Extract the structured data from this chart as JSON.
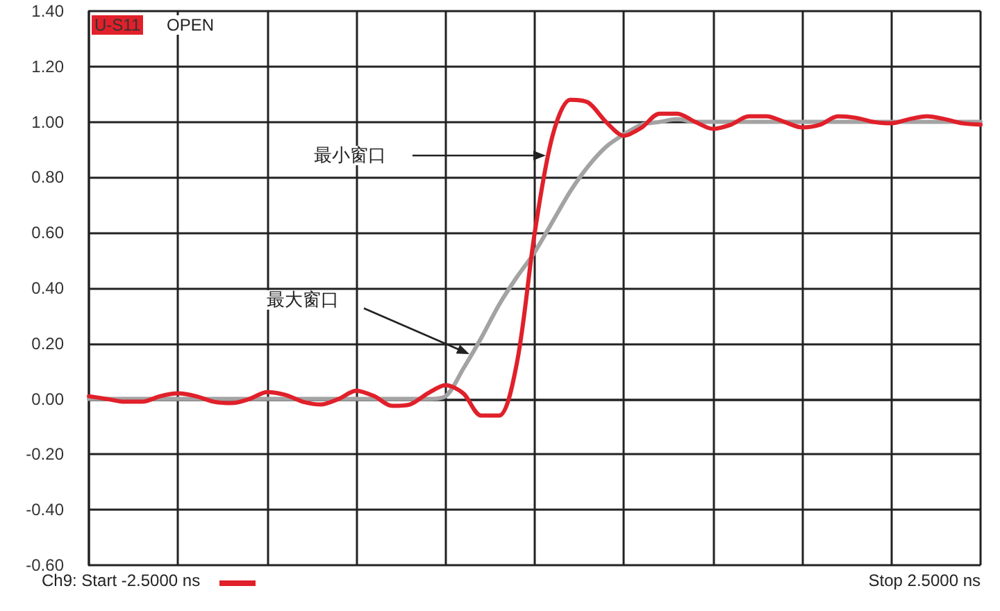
{
  "chart_data": {
    "type": "line",
    "categories": [
      null,
      null,
      null,
      null,
      null,
      null,
      null,
      null,
      null,
      null,
      null,
      null,
      null,
      null,
      null,
      null,
      null,
      null,
      null,
      null,
      null,
      null,
      null,
      null,
      null,
      null,
      null,
      null,
      null,
      null,
      null,
      null,
      null,
      null,
      null,
      null,
      null,
      null,
      null,
      null,
      null,
      null,
      null,
      null,
      null,
      null,
      null,
      null,
      null,
      null,
      null
    ],
    "series": [
      {
        "color": "#a3a3a3",
        "values": [
          0.0,
          0.0,
          0.0,
          0.0,
          0.0,
          0.0,
          0.0,
          0.0,
          0.0,
          0.0,
          0.0,
          0.0,
          0.0,
          0.0,
          0.0,
          0.0,
          0.0,
          0.0,
          0.0,
          0.0,
          0.01,
          0.11,
          0.22,
          0.34,
          0.44,
          0.53,
          0.64,
          0.75,
          0.84,
          0.91,
          0.955,
          0.99,
          1.0,
          1.01,
          1.0,
          1.0,
          1.0,
          1.0,
          1.0,
          1.0,
          1.0,
          1.0,
          1.0,
          1.0,
          1.0,
          1.0,
          1.0,
          1.0,
          1.0,
          1.0,
          1.0
        ]
      },
      {
        "color": "#e0202a",
        "values": [
          0.01,
          0.0,
          -0.01,
          -0.01,
          0.01,
          0.02,
          0.01,
          -0.01,
          -0.015,
          0.0,
          0.025,
          0.015,
          -0.01,
          -0.02,
          0.0,
          0.03,
          0.01,
          -0.025,
          -0.02,
          0.02,
          0.05,
          0.02,
          -0.06,
          -0.06,
          0.13,
          0.6,
          0.95,
          1.08,
          1.07,
          1.0,
          0.95,
          0.98,
          1.03,
          1.03,
          1.0,
          0.975,
          0.99,
          1.02,
          1.02,
          1.0,
          0.98,
          0.99,
          1.02,
          1.015,
          1.0,
          0.995,
          1.01,
          1.02,
          1.01,
          0.995,
          0.99
        ]
      }
    ],
    "ylim": [
      -0.6,
      1.4
    ],
    "yticks": [
      {
        "value": -0.6,
        "label": "-0.60"
      },
      {
        "value": -0.4,
        "label": "-0.40"
      },
      {
        "value": -0.2,
        "label": "-0.20"
      },
      {
        "value": 0,
        "label": "0.00"
      },
      {
        "value": 0.2,
        "label": "0.20"
      },
      {
        "value": 0.4,
        "label": "0.40"
      },
      {
        "value": 0.6,
        "label": "0.60"
      },
      {
        "value": 0.8,
        "label": "0.80"
      },
      {
        "value": 1.0,
        "label": "1.00"
      },
      {
        "value": 1.2,
        "label": "1.20"
      },
      {
        "value": 1.4,
        "label": "1.40"
      }
    ],
    "tick_labels": "y",
    "grid": true,
    "marker": "none",
    "line_style": "solid",
    "annotations": [
      "U-S11",
      "OPEN",
      "最小窗口",
      "最大窗口",
      "Ch9: Start -2.5000 ns",
      "Stop 2.5000 ns"
    ]
  }
}
